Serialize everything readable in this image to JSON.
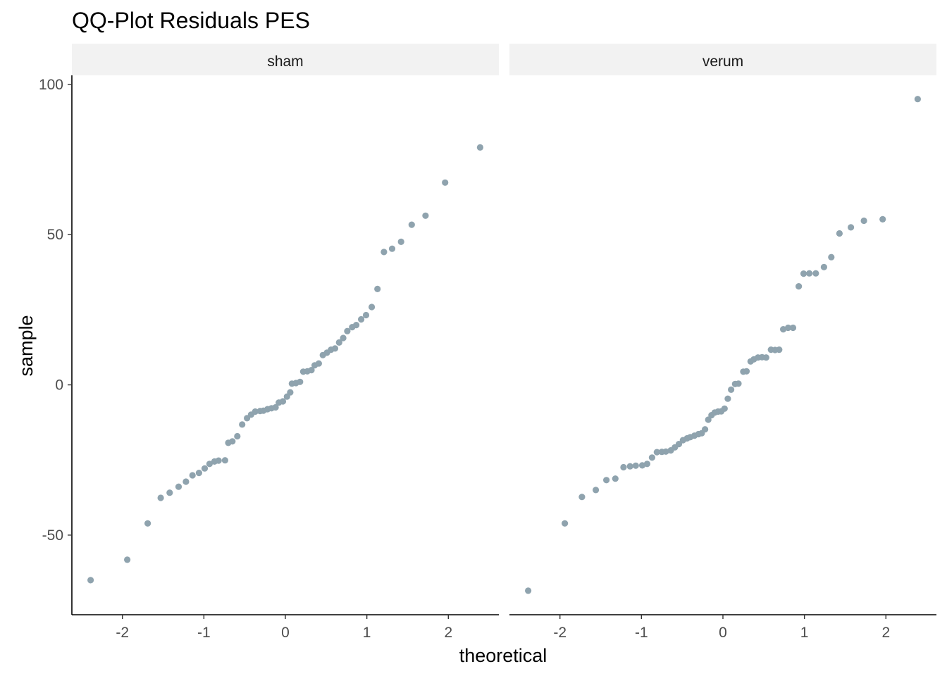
{
  "chart_data": {
    "type": "scatter",
    "title": "QQ-Plot Residuals PES",
    "xlabel": "theoretical",
    "ylabel": "sample",
    "xlim": [
      -2.62,
      2.62
    ],
    "ylim": [
      -76.5,
      103
    ],
    "x_ticks": [
      -2,
      -1,
      0,
      1,
      2
    ],
    "x_tick_labels": [
      "-2",
      "-1",
      "0",
      "1",
      "2"
    ],
    "y_ticks": [
      -50,
      0,
      50,
      100
    ],
    "y_tick_labels": [
      "-50",
      "0",
      "50",
      "100"
    ],
    "grid": false,
    "point_color": "#8fa3ae",
    "strip_color": "#f2f2f2",
    "panels": [
      {
        "strip": "sham",
        "points": [
          [
            -2.39,
            -65
          ],
          [
            -1.94,
            -58.2
          ],
          [
            -1.69,
            -46.1
          ],
          [
            -1.53,
            -37.6
          ],
          [
            -1.42,
            -35.9
          ],
          [
            -1.31,
            -33.9
          ],
          [
            -1.22,
            -32.2
          ],
          [
            -1.14,
            -30.1
          ],
          [
            -1.06,
            -29.3
          ],
          [
            -0.99,
            -27.8
          ],
          [
            -0.93,
            -26.3
          ],
          [
            -0.87,
            -25.5
          ],
          [
            -0.82,
            -25.2
          ],
          [
            -0.74,
            -25.1
          ],
          [
            -0.7,
            -19.3
          ],
          [
            -0.65,
            -18.8
          ],
          [
            -0.59,
            -17.1
          ],
          [
            -0.53,
            -13.2
          ],
          [
            -0.47,
            -11.1
          ],
          [
            -0.42,
            -9.9
          ],
          [
            -0.37,
            -8.9
          ],
          [
            -0.31,
            -8.7
          ],
          [
            -0.27,
            -8.6
          ],
          [
            -0.22,
            -8.1
          ],
          [
            -0.17,
            -7.8
          ],
          [
            -0.12,
            -7.5
          ],
          [
            -0.08,
            -5.9
          ],
          [
            -0.03,
            -5.5
          ],
          [
            0.02,
            -3.9
          ],
          [
            0.06,
            -2.5
          ],
          [
            0.08,
            0.4
          ],
          [
            0.13,
            0.6
          ],
          [
            0.18,
            1.0
          ],
          [
            0.22,
            4.4
          ],
          [
            0.27,
            4.5
          ],
          [
            0.32,
            4.9
          ],
          [
            0.36,
            6.5
          ],
          [
            0.41,
            7.1
          ],
          [
            0.46,
            9.9
          ],
          [
            0.51,
            10.7
          ],
          [
            0.56,
            11.7
          ],
          [
            0.61,
            12.1
          ],
          [
            0.66,
            14.1
          ],
          [
            0.71,
            15.6
          ],
          [
            0.76,
            17.9
          ],
          [
            0.82,
            19.2
          ],
          [
            0.87,
            19.9
          ],
          [
            0.93,
            21.8
          ],
          [
            0.99,
            23.2
          ],
          [
            1.06,
            25.9
          ],
          [
            1.13,
            31.9
          ],
          [
            1.21,
            44.2
          ],
          [
            1.31,
            45.3
          ],
          [
            1.42,
            47.6
          ],
          [
            1.55,
            53.3
          ],
          [
            1.72,
            56.3
          ],
          [
            1.96,
            67.3
          ],
          [
            2.39,
            79.0
          ]
        ]
      },
      {
        "strip": "verum",
        "points": [
          [
            -2.39,
            -68.5
          ],
          [
            -1.94,
            -46.1
          ],
          [
            -1.73,
            -37.3
          ],
          [
            -1.56,
            -35.0
          ],
          [
            -1.43,
            -31.7
          ],
          [
            -1.32,
            -31.2
          ],
          [
            -1.22,
            -27.4
          ],
          [
            -1.14,
            -27.1
          ],
          [
            -1.07,
            -26.9
          ],
          [
            -0.99,
            -26.8
          ],
          [
            -0.93,
            -26.3
          ],
          [
            -0.87,
            -24.2
          ],
          [
            -0.81,
            -22.4
          ],
          [
            -0.75,
            -22.3
          ],
          [
            -0.7,
            -22.2
          ],
          [
            -0.64,
            -21.8
          ],
          [
            -0.59,
            -20.8
          ],
          [
            -0.54,
            -19.7
          ],
          [
            -0.49,
            -18.4
          ],
          [
            -0.44,
            -17.8
          ],
          [
            -0.4,
            -17.4
          ],
          [
            -0.35,
            -16.9
          ],
          [
            -0.3,
            -16.4
          ],
          [
            -0.26,
            -16.1
          ],
          [
            -0.22,
            -14.8
          ],
          [
            -0.18,
            -11.6
          ],
          [
            -0.14,
            -10.1
          ],
          [
            -0.1,
            -9.2
          ],
          [
            -0.06,
            -8.9
          ],
          [
            -0.02,
            -8.8
          ],
          [
            0.02,
            -7.9
          ],
          [
            0.06,
            -4.6
          ],
          [
            0.1,
            -1.6
          ],
          [
            0.15,
            0.3
          ],
          [
            0.19,
            0.4
          ],
          [
            0.25,
            4.4
          ],
          [
            0.29,
            4.5
          ],
          [
            0.34,
            7.8
          ],
          [
            0.38,
            8.5
          ],
          [
            0.43,
            9.1
          ],
          [
            0.48,
            9.2
          ],
          [
            0.53,
            9.1
          ],
          [
            0.59,
            11.7
          ],
          [
            0.64,
            11.6
          ],
          [
            0.69,
            11.7
          ],
          [
            0.74,
            18.5
          ],
          [
            0.8,
            19.0
          ],
          [
            0.86,
            19.0
          ],
          [
            0.93,
            32.8
          ],
          [
            0.99,
            37.0
          ],
          [
            1.06,
            37.1
          ],
          [
            1.14,
            37.1
          ],
          [
            1.24,
            39.2
          ],
          [
            1.33,
            42.5
          ],
          [
            1.43,
            50.4
          ],
          [
            1.57,
            52.4
          ],
          [
            1.73,
            54.6
          ],
          [
            1.96,
            55.1
          ],
          [
            2.39,
            95.1
          ]
        ]
      }
    ]
  }
}
